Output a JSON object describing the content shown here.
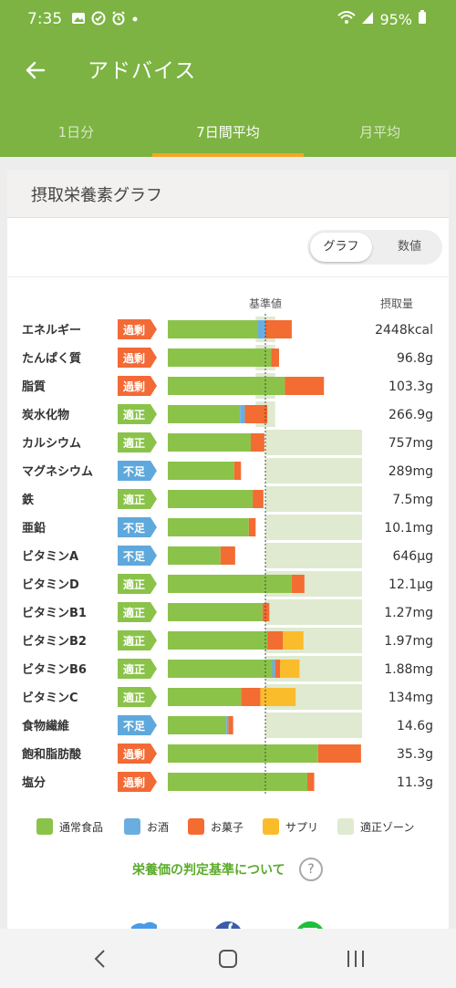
{
  "status": {
    "time": "7:35",
    "battery": "95%"
  },
  "appbar": {
    "title": "アドバイス"
  },
  "tabs": [
    {
      "label": "1日分",
      "active": false
    },
    {
      "label": "7日間平均",
      "active": true
    },
    {
      "label": "月平均",
      "active": false
    }
  ],
  "card": {
    "title": "摂取栄養素グラフ",
    "toggle": {
      "selected": "グラフ",
      "other": "数値"
    }
  },
  "link_text": "栄養価の判定基準について",
  "help_icon": "?",
  "colors": {
    "normal_food": "#8bc34a",
    "alcohol": "#6aaee0",
    "sweets": "#f36c32",
    "supplement": "#fbbc2c",
    "proper_zone": "#dfead0",
    "over_badge": "#f26a36",
    "proper_badge": "#8bc34a",
    "short_badge": "#5fa8dc"
  },
  "chart_data": {
    "type": "bar",
    "orientation": "horizontal",
    "stacked": true,
    "header_baseline": "基準値",
    "header_intake": "摂取量",
    "note": "values are fraction of the 基準値 (1.0 = reference line)",
    "legend": [
      {
        "name": "通常食品",
        "color": "#8bc34a"
      },
      {
        "name": "お酒",
        "color": "#6aaee0"
      },
      {
        "name": "お菓子",
        "color": "#f36c32"
      },
      {
        "name": "サプリ",
        "color": "#fbbc2c"
      },
      {
        "name": "適正ゾーン",
        "color": "#dfead0"
      }
    ],
    "series_names": [
      "通常食品",
      "お酒",
      "お菓子",
      "サプリ"
    ],
    "rows": [
      {
        "name": "エネルギー",
        "status": "過剰",
        "amount": "2448kcal",
        "values": [
          0.92,
          0.08,
          0.27,
          0
        ],
        "zone": [
          0.9,
          1.1
        ]
      },
      {
        "name": "たんぱく質",
        "status": "過剰",
        "amount": "96.8g",
        "values": [
          1.06,
          0,
          0.08,
          0
        ],
        "zone": [
          0.9,
          1.1
        ]
      },
      {
        "name": "脂質",
        "status": "過剰",
        "amount": "103.3g",
        "values": [
          1.2,
          0,
          0.4,
          0
        ],
        "zone": [
          0.9,
          1.1
        ]
      },
      {
        "name": "炭水化物",
        "status": "適正",
        "amount": "266.9g",
        "values": [
          0.74,
          0.05,
          0.23,
          0
        ],
        "zone": [
          0.9,
          1.1
        ]
      },
      {
        "name": "カルシウム",
        "status": "適正",
        "amount": "757mg",
        "values": [
          0.85,
          0,
          0.14,
          0
        ],
        "zone": [
          1.0,
          2.0
        ]
      },
      {
        "name": "マグネシウム",
        "status": "不足",
        "amount": "289mg",
        "values": [
          0.68,
          0,
          0.07,
          0
        ],
        "zone": [
          1.0,
          2.0
        ]
      },
      {
        "name": "鉄",
        "status": "適正",
        "amount": "7.5mg",
        "values": [
          0.87,
          0,
          0.11,
          0
        ],
        "zone": [
          1.0,
          2.0
        ]
      },
      {
        "name": "亜鉛",
        "status": "不足",
        "amount": "10.1mg",
        "values": [
          0.83,
          0,
          0.07,
          0
        ],
        "zone": [
          1.0,
          2.0
        ]
      },
      {
        "name": "ビタミンA",
        "status": "不足",
        "amount": "646μg",
        "values": [
          0.54,
          0,
          0.15,
          0
        ],
        "zone": [
          1.0,
          2.0
        ]
      },
      {
        "name": "ビタミンD",
        "status": "適正",
        "amount": "12.1μg",
        "values": [
          1.27,
          0,
          0.13,
          0
        ],
        "zone": [
          1.0,
          2.0
        ]
      },
      {
        "name": "ビタミンB1",
        "status": "適正",
        "amount": "1.27mg",
        "values": [
          0.97,
          0,
          0.07,
          0
        ],
        "zone": [
          1.0,
          2.0
        ]
      },
      {
        "name": "ビタミンB2",
        "status": "適正",
        "amount": "1.97mg",
        "values": [
          1.02,
          0,
          0.16,
          0.21
        ],
        "zone": [
          1.0,
          2.0
        ]
      },
      {
        "name": "ビタミンB6",
        "status": "適正",
        "amount": "1.88mg",
        "values": [
          1.07,
          0.03,
          0.05,
          0.2
        ],
        "zone": [
          1.0,
          2.0
        ]
      },
      {
        "name": "ビタミンC",
        "status": "適正",
        "amount": "134mg",
        "values": [
          0.75,
          0,
          0.2,
          0.36
        ],
        "zone": [
          1.0,
          2.0
        ]
      },
      {
        "name": "食物繊維",
        "status": "不足",
        "amount": "14.6g",
        "values": [
          0.6,
          0.02,
          0.05,
          0
        ],
        "zone": [
          1.0,
          2.0
        ]
      },
      {
        "name": "飽和脂肪酸",
        "status": "過剰",
        "amount": "35.3g",
        "values": [
          1.54,
          0,
          0.44,
          0
        ],
        "zone": [
          0,
          0
        ]
      },
      {
        "name": "塩分",
        "status": "過剰",
        "amount": "11.3g",
        "values": [
          1.43,
          0,
          0.07,
          0
        ],
        "zone": [
          0,
          0
        ]
      }
    ]
  }
}
